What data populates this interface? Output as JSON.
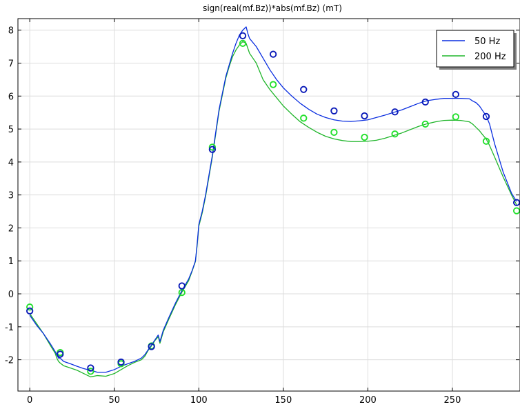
{
  "chart_data": {
    "type": "line",
    "title": "sign(real(mf.Bz))*abs(mf.Bz) (mT)",
    "xlabel": "",
    "ylabel": "",
    "xlim": [
      -7,
      290
    ],
    "ylim": [
      -2.95,
      8.35
    ],
    "x_ticks": [
      0,
      50,
      100,
      150,
      200,
      250
    ],
    "x_tick_labels": [
      "0",
      "50",
      "100",
      "150",
      "200",
      "250"
    ],
    "y_ticks": [
      -2,
      -1,
      0,
      1,
      2,
      3,
      4,
      5,
      6,
      7,
      8
    ],
    "y_tick_labels": [
      "-2",
      "-1",
      "0",
      "1",
      "2",
      "3",
      "4",
      "5",
      "6",
      "7",
      "8"
    ],
    "grid": true,
    "legend_position": "top-right",
    "series": [
      {
        "name": "50 Hz",
        "color": "#0a2ee0",
        "marker_color": "#0a1ab8",
        "line": {
          "x": [
            0,
            4,
            8,
            12,
            15,
            16,
            17,
            18,
            20,
            24,
            28,
            32,
            36,
            40,
            45,
            50,
            54,
            58,
            62,
            66,
            68,
            70,
            72,
            74,
            76,
            77,
            79,
            82,
            86,
            90,
            94,
            96,
            98,
            99,
            100,
            102,
            104,
            106,
            108,
            110,
            112,
            114,
            116,
            118,
            120,
            122,
            124,
            126,
            128,
            129,
            130,
            134,
            138,
            142,
            146,
            150,
            155,
            160,
            165,
            170,
            175,
            180,
            185,
            190,
            195,
            200,
            205,
            210,
            215,
            220,
            225,
            230,
            235,
            240,
            245,
            250,
            255,
            260,
            262,
            264,
            266,
            268,
            270,
            272,
            275,
            280,
            285,
            288
          ],
          "y": [
            -0.65,
            -0.95,
            -1.2,
            -1.5,
            -1.75,
            -1.85,
            -1.95,
            -1.95,
            -2.05,
            -2.12,
            -2.2,
            -2.27,
            -2.32,
            -2.38,
            -2.38,
            -2.3,
            -2.2,
            -2.12,
            -2.05,
            -1.95,
            -1.85,
            -1.7,
            -1.55,
            -1.4,
            -1.25,
            -1.45,
            -1.1,
            -0.75,
            -0.3,
            0.1,
            0.45,
            0.7,
            1.0,
            1.5,
            2.1,
            2.5,
            3.0,
            3.6,
            4.2,
            4.9,
            5.6,
            6.1,
            6.6,
            6.95,
            7.3,
            7.6,
            7.85,
            8.0,
            8.1,
            7.9,
            7.75,
            7.5,
            7.15,
            6.8,
            6.5,
            6.25,
            6.0,
            5.78,
            5.6,
            5.45,
            5.35,
            5.28,
            5.24,
            5.23,
            5.25,
            5.28,
            5.35,
            5.42,
            5.5,
            5.58,
            5.68,
            5.78,
            5.86,
            5.9,
            5.93,
            5.93,
            5.93,
            5.92,
            5.85,
            5.8,
            5.7,
            5.55,
            5.4,
            5.15,
            4.55,
            3.7,
            3.05,
            2.8
          ]
        },
        "points": {
          "x": [
            0,
            18,
            36,
            54,
            72,
            90,
            108,
            126,
            144,
            162,
            180,
            198,
            216,
            234,
            252,
            270,
            288
          ],
          "y": [
            -0.52,
            -1.83,
            -2.25,
            -2.07,
            -1.6,
            0.24,
            4.38,
            7.83,
            7.27,
            6.2,
            5.55,
            5.4,
            5.52,
            5.82,
            6.05,
            5.38,
            2.77
          ]
        }
      },
      {
        "name": "200 Hz",
        "color": "#1fb52a",
        "marker_color": "#22e02c",
        "line": {
          "x": [
            0,
            4,
            8,
            12,
            15,
            16,
            17,
            18,
            20,
            24,
            28,
            32,
            36,
            40,
            45,
            50,
            54,
            58,
            62,
            66,
            68,
            70,
            72,
            74,
            76,
            77,
            79,
            82,
            86,
            90,
            94,
            96,
            98,
            99,
            100,
            102,
            104,
            106,
            108,
            110,
            112,
            114,
            116,
            118,
            120,
            122,
            124,
            126,
            128,
            129,
            130,
            134,
            138,
            142,
            146,
            150,
            155,
            160,
            165,
            170,
            175,
            180,
            185,
            190,
            195,
            200,
            205,
            210,
            215,
            220,
            225,
            230,
            235,
            240,
            245,
            250,
            255,
            260,
            262,
            264,
            266,
            268,
            270,
            272,
            275,
            280,
            285,
            288
          ],
          "y": [
            -0.6,
            -0.9,
            -1.2,
            -1.55,
            -1.8,
            -1.95,
            -2.05,
            -2.1,
            -2.18,
            -2.25,
            -2.32,
            -2.42,
            -2.52,
            -2.48,
            -2.5,
            -2.42,
            -2.3,
            -2.18,
            -2.08,
            -2.0,
            -1.9,
            -1.72,
            -1.58,
            -1.42,
            -1.3,
            -1.5,
            -1.15,
            -0.8,
            -0.35,
            0.05,
            0.4,
            0.68,
            0.98,
            1.45,
            2.05,
            2.45,
            2.95,
            3.55,
            4.15,
            4.85,
            5.55,
            6.05,
            6.55,
            6.9,
            7.2,
            7.4,
            7.55,
            7.65,
            7.6,
            7.45,
            7.3,
            7.0,
            6.5,
            6.2,
            5.95,
            5.7,
            5.45,
            5.22,
            5.05,
            4.9,
            4.78,
            4.7,
            4.65,
            4.62,
            4.62,
            4.63,
            4.66,
            4.72,
            4.8,
            4.88,
            4.98,
            5.08,
            5.16,
            5.22,
            5.26,
            5.27,
            5.26,
            5.22,
            5.15,
            5.05,
            4.95,
            4.82,
            4.7,
            4.5,
            4.15,
            3.55,
            3.0,
            2.7
          ]
        },
        "points": {
          "x": [
            0,
            18,
            36,
            54,
            72,
            90,
            108,
            126,
            144,
            162,
            180,
            198,
            216,
            234,
            252,
            270,
            288
          ],
          "y": [
            -0.4,
            -1.78,
            -2.35,
            -2.12,
            -1.58,
            0.04,
            4.45,
            7.6,
            6.35,
            5.33,
            4.9,
            4.75,
            4.85,
            5.15,
            5.37,
            4.63,
            2.52
          ]
        }
      }
    ]
  }
}
